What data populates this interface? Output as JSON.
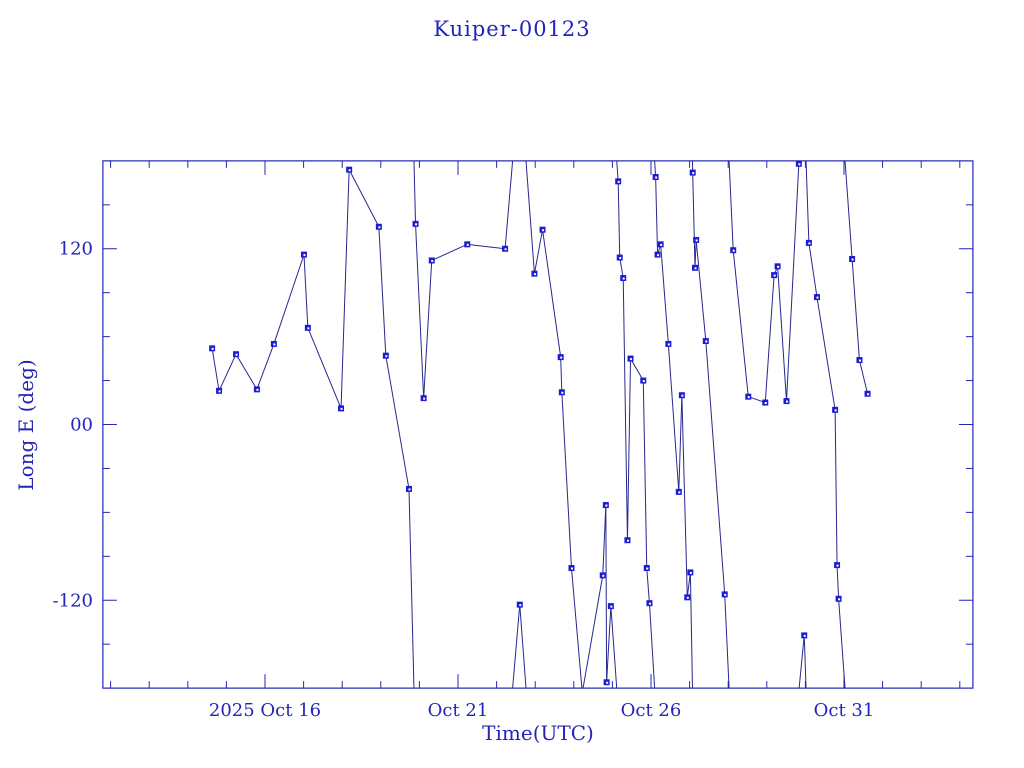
{
  "window": {
    "title": "Kuiper-00123"
  },
  "chart_data": {
    "type": "line",
    "title": "Kuiper-00123",
    "xlabel": "Time(UTC)",
    "ylabel": "Long E (deg)",
    "x_tick_labels": [
      {
        "label": "2025 Oct 16",
        "day": 16
      },
      {
        "label": "Oct 21",
        "day": 21
      },
      {
        "label": "Oct 26",
        "day": 26
      },
      {
        "label": "Oct 31",
        "day": 31
      }
    ],
    "y_tick_labels": [
      {
        "label": "120",
        "value": 120
      },
      {
        "label": "00",
        "value": 0
      },
      {
        "label": "-120",
        "value": -120
      }
    ],
    "x_range_days": [
      11.8,
      34.34
    ],
    "ylim": [
      -180,
      180
    ],
    "x_minor_step_days": 1,
    "x_major_step_days": 5,
    "y_minor_step_deg": 30,
    "y_major_step_deg": 120,
    "wrap_at_deg": 180,
    "grid": "off",
    "legend": "none",
    "marker": "square",
    "series": [
      {
        "name": "longitude-track",
        "points_day_lon": [
          [
            14.63,
            52
          ],
          [
            14.81,
            23
          ],
          [
            15.25,
            48
          ],
          [
            15.79,
            24
          ],
          [
            16.23,
            55
          ],
          [
            17.01,
            116
          ],
          [
            17.11,
            66
          ],
          [
            17.97,
            11
          ],
          [
            18.18,
            174
          ],
          [
            18.95,
            135
          ],
          [
            19.13,
            47
          ],
          [
            19.73,
            -44
          ],
          [
            19.9,
            137
          ],
          [
            20.11,
            18
          ],
          [
            20.32,
            112
          ],
          [
            21.24,
            123
          ],
          [
            22.22,
            120
          ],
          [
            22.6,
            -123
          ],
          [
            22.98,
            103
          ],
          [
            23.19,
            133
          ],
          [
            23.66,
            46
          ],
          [
            23.69,
            22
          ],
          [
            23.94,
            -98
          ],
          [
            24.22,
            -183
          ],
          [
            24.75,
            -103
          ],
          [
            24.83,
            -55
          ],
          [
            24.85,
            -176
          ],
          [
            24.96,
            -124
          ],
          [
            25.15,
            166
          ],
          [
            25.19,
            114
          ],
          [
            25.28,
            100
          ],
          [
            25.39,
            -79
          ],
          [
            25.47,
            45
          ],
          [
            25.8,
            30
          ],
          [
            25.89,
            -98
          ],
          [
            25.96,
            -122
          ],
          [
            26.12,
            169
          ],
          [
            26.17,
            116
          ],
          [
            26.25,
            123
          ],
          [
            26.45,
            55
          ],
          [
            26.72,
            -46
          ],
          [
            26.8,
            20
          ],
          [
            26.94,
            -118
          ],
          [
            27.02,
            -101
          ],
          [
            27.08,
            172
          ],
          [
            27.14,
            107
          ],
          [
            27.17,
            126
          ],
          [
            27.42,
            57
          ],
          [
            27.91,
            -116
          ],
          [
            28.13,
            119
          ],
          [
            28.52,
            19
          ],
          [
            28.96,
            15
          ],
          [
            29.19,
            102
          ],
          [
            29.28,
            108
          ],
          [
            29.51,
            16
          ],
          [
            29.83,
            178
          ],
          [
            29.97,
            -144
          ],
          [
            30.09,
            124
          ],
          [
            30.3,
            87
          ],
          [
            30.77,
            10
          ],
          [
            30.82,
            -96
          ],
          [
            30.86,
            -119
          ],
          [
            31.21,
            113
          ],
          [
            31.4,
            44
          ],
          [
            31.61,
            21
          ]
        ]
      }
    ],
    "colors": {
      "background": "#ffffff",
      "axis": "#2424b8",
      "text": "#2424b8",
      "line": "#28288e",
      "marker": "#1c1cd2"
    }
  }
}
